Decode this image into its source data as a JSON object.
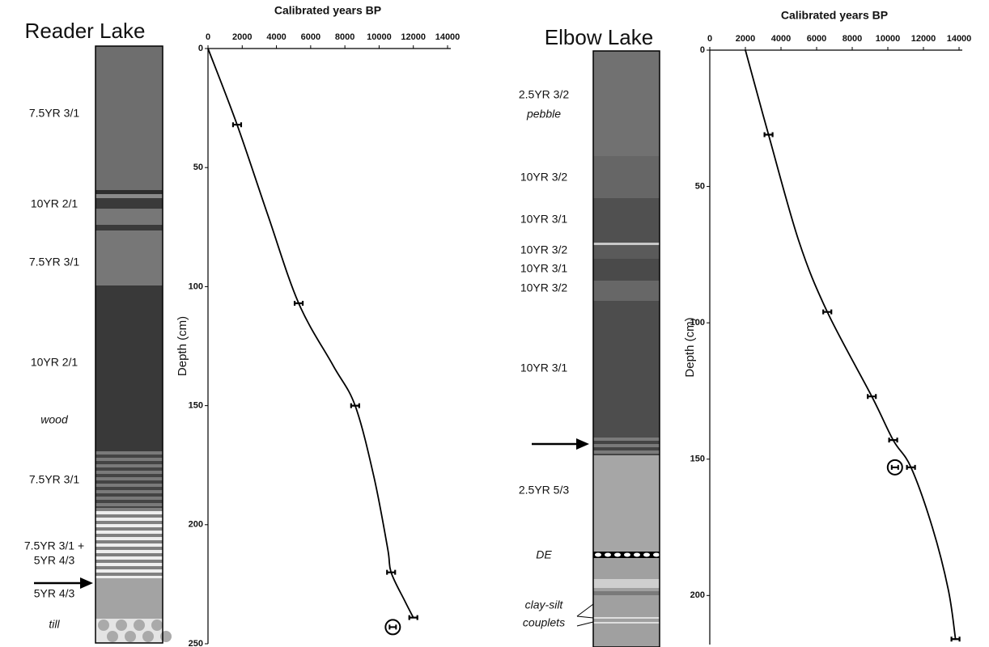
{
  "chart_data": [
    {
      "type": "line",
      "title": "Reader Lake",
      "x_label": "Calibrated years BP",
      "y_label": "Depth (cm)",
      "xlim": [
        0,
        14000
      ],
      "xticks": [
        0,
        2000,
        4000,
        6000,
        8000,
        10000,
        12000,
        14000
      ],
      "ylim": [
        0,
        250
      ],
      "yticks": [
        0,
        50,
        100,
        150,
        200,
        250
      ],
      "series": [
        {
          "color": "#000000",
          "x": [
            0,
            1700,
            3500,
            5300,
            7300,
            8600,
            9700,
            10500,
            10700,
            11500,
            12000
          ],
          "values": [
            0,
            32,
            70,
            107,
            133,
            150,
            180,
            210,
            220,
            232,
            239
          ]
        }
      ],
      "dates": {
        "x": [
          1700,
          5300,
          8600,
          10700,
          12000
        ],
        "values": [
          32,
          107,
          150,
          220,
          239
        ]
      },
      "outliers": {
        "x": [
          10800
        ],
        "values": [
          243
        ]
      }
    },
    {
      "type": "line",
      "title": "Elbow Lake",
      "x_label": "Calibrated years BP",
      "y_label": "Depth (cm)",
      "xlim": [
        0,
        14000
      ],
      "xticks": [
        0,
        2000,
        4000,
        6000,
        8000,
        10000,
        12000,
        14000
      ],
      "ylim": [
        0,
        218
      ],
      "yticks": [
        0,
        50,
        100,
        150,
        200
      ],
      "series": [
        {
          "color": "#000000",
          "x": [
            2000,
            3300,
            5000,
            6600,
            9100,
            10300,
            11300,
            12500,
            13400,
            13800
          ],
          "values": [
            0,
            31,
            70,
            96,
            127,
            143,
            153,
            175,
            198,
            216
          ]
        }
      ],
      "dates": {
        "x": [
          3300,
          6600,
          9100,
          10300,
          11300,
          13800
        ],
        "values": [
          31,
          96,
          127,
          143,
          153,
          216
        ]
      },
      "outliers": {
        "x": [
          10400
        ],
        "values": [
          153
        ]
      }
    }
  ],
  "cores": [
    {
      "units": [
        "7.5YR 3/1",
        "10YR 2/1",
        "7.5YR 3/1",
        "10YR 2/1",
        "wood",
        "7.5YR 3/1",
        "7.5YR 3/1 +",
        "5YR 4/3",
        "5YR 4/3",
        "till"
      ]
    },
    {
      "units": [
        "2.5YR 3/2",
        "pebble",
        "10YR 3/2",
        "10YR 3/1",
        "10YR 3/2",
        "10YR 3/1",
        "10YR 3/2",
        "10YR 3/1",
        "2.5YR 5/3",
        "DE",
        "clay-silt",
        "couplets"
      ]
    }
  ]
}
